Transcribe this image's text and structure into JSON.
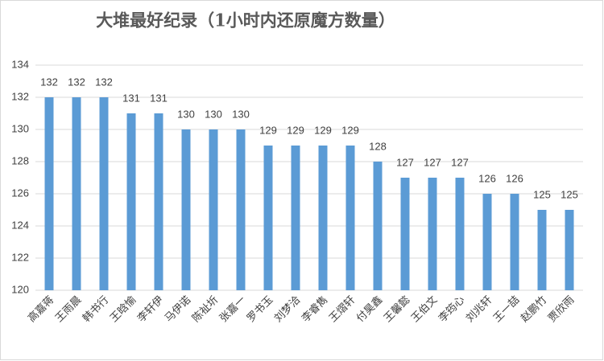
{
  "chart_data": {
    "type": "bar",
    "title": "大堆最好纪录（1小时内还原魔方数量）",
    "categories": [
      "高嘉蒋",
      "王雨晨",
      "韩书行",
      "王晗愉",
      "李轩伊",
      "马伊诺",
      "陈祉圻",
      "张嘉一",
      "罗书玉",
      "刘梦洽",
      "李睿雋",
      "王熠轩",
      "付昊鑫",
      "王馨懿",
      "王伯文",
      "李筠心",
      "刘兆轩",
      "王一喆",
      "赵鹏竹",
      "贾欣雨"
    ],
    "values": [
      132,
      132,
      132,
      131,
      131,
      130,
      130,
      130,
      129,
      129,
      129,
      129,
      128,
      127,
      127,
      127,
      126,
      126,
      125,
      125
    ],
    "color": "#5b9bd5",
    "ylim": [
      120,
      134
    ],
    "yticks": [
      120,
      122,
      124,
      126,
      128,
      130,
      132,
      134
    ],
    "grid": true
  }
}
